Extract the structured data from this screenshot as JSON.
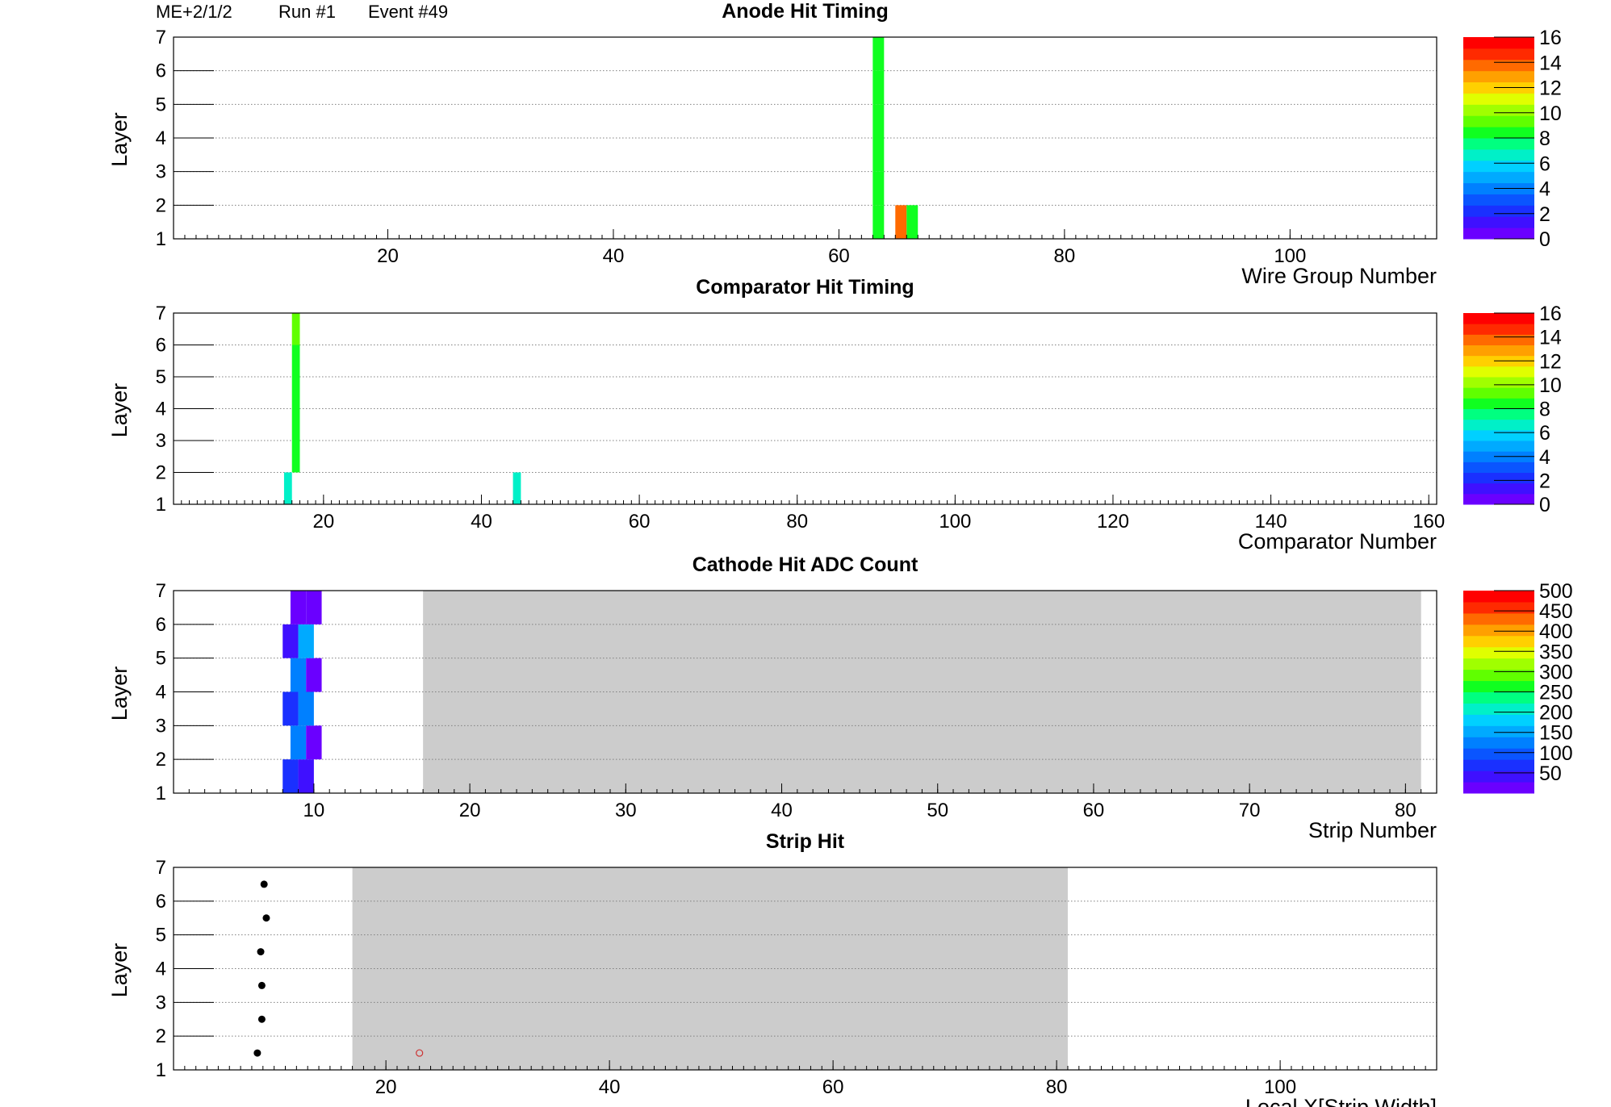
{
  "header": {
    "chamber": "ME+2/1/2",
    "run": "Run #1",
    "event": "Event #49"
  },
  "colors": {
    "palette": [
      "#6a00ff",
      "#3f10ff",
      "#1a30ff",
      "#0a55ff",
      "#0080ff",
      "#00aaff",
      "#00d0ff",
      "#00f0c8",
      "#00ff80",
      "#10ff20",
      "#60ff00",
      "#a0ff00",
      "#e0ff00",
      "#ffd000",
      "#ffa000",
      "#ff6a00",
      "#ff2a00",
      "#ff0000"
    ],
    "background_shade": "#cccccc",
    "strip_hit_point": "#000000",
    "strip_hit_marker": "#cc3333",
    "grid": "#808080"
  },
  "chart_data": [
    {
      "type": "heatmap",
      "title": "Anode Hit Timing",
      "xlabel": "Wire Group Number",
      "ylabel": "Layer",
      "xlim": [
        1,
        113
      ],
      "ylim": [
        1,
        7
      ],
      "x_ticks": [
        "20",
        "40",
        "60",
        "80",
        "100"
      ],
      "y_ticks": [
        "1",
        "2",
        "3",
        "4",
        "5",
        "6",
        "7"
      ],
      "grid": "horizontal dotted",
      "colorbar": {
        "range": [
          0,
          16
        ],
        "ticks": [
          "0",
          "2",
          "4",
          "6",
          "8",
          "10",
          "12",
          "14",
          "16"
        ]
      },
      "cells": [
        {
          "x": 63,
          "y": 1,
          "value": 8
        },
        {
          "x": 63,
          "y": 2,
          "value": 8
        },
        {
          "x": 63,
          "y": 3,
          "value": 8
        },
        {
          "x": 63,
          "y": 4,
          "value": 8
        },
        {
          "x": 63,
          "y": 5,
          "value": 8
        },
        {
          "x": 63,
          "y": 6,
          "value": 8
        },
        {
          "x": 65,
          "y": 1,
          "value": 14
        },
        {
          "x": 66,
          "y": 1,
          "value": 8
        }
      ]
    },
    {
      "type": "heatmap",
      "title": "Comparator Hit Timing",
      "xlabel": "Comparator Number",
      "ylabel": "Layer",
      "xlim": [
        1,
        161
      ],
      "ylim": [
        1,
        7
      ],
      "x_ticks": [
        "20",
        "40",
        "60",
        "80",
        "100",
        "120",
        "140",
        "160"
      ],
      "y_ticks": [
        "1",
        "2",
        "3",
        "4",
        "5",
        "6",
        "7"
      ],
      "grid": "horizontal dotted",
      "colorbar": {
        "range": [
          0,
          16
        ],
        "ticks": [
          "0",
          "2",
          "4",
          "6",
          "8",
          "10",
          "12",
          "14",
          "16"
        ]
      },
      "cells": [
        {
          "x": 15,
          "y": 1,
          "value": 7
        },
        {
          "x": 16,
          "y": 2,
          "value": 8
        },
        {
          "x": 16,
          "y": 3,
          "value": 8
        },
        {
          "x": 16,
          "y": 4,
          "value": 8
        },
        {
          "x": 16,
          "y": 5,
          "value": 8
        },
        {
          "x": 16,
          "y": 6,
          "value": 9
        },
        {
          "x": 44,
          "y": 1,
          "value": 7
        }
      ]
    },
    {
      "type": "heatmap",
      "title": "Cathode Hit ADC Count",
      "xlabel": "Strip Number",
      "ylabel": "Layer",
      "xlim": [
        1,
        82
      ],
      "ylim": [
        1,
        7
      ],
      "x_ticks": [
        "10",
        "20",
        "30",
        "40",
        "50",
        "60",
        "70",
        "80"
      ],
      "y_ticks": [
        "1",
        "2",
        "3",
        "4",
        "5",
        "6",
        "7"
      ],
      "grid": "horizontal dotted",
      "shaded_x_range": [
        17,
        81
      ],
      "colorbar": {
        "range": [
          0,
          500
        ],
        "ticks": [
          "50",
          "100",
          "150",
          "200",
          "250",
          "300",
          "350",
          "400",
          "450",
          "500"
        ]
      },
      "cells": [
        {
          "x": 8,
          "y": 1,
          "value": 80
        },
        {
          "x": 9,
          "y": 1,
          "value": 40
        },
        {
          "x": 8.5,
          "y": 2,
          "value": 120
        },
        {
          "x": 9.5,
          "y": 2,
          "value": 20
        },
        {
          "x": 8,
          "y": 3,
          "value": 80
        },
        {
          "x": 9,
          "y": 3,
          "value": 120
        },
        {
          "x": 8.5,
          "y": 4,
          "value": 120
        },
        {
          "x": 9.5,
          "y": 4,
          "value": 20
        },
        {
          "x": 8,
          "y": 5,
          "value": 40
        },
        {
          "x": 9,
          "y": 5,
          "value": 160
        },
        {
          "x": 8.5,
          "y": 6,
          "value": 20
        },
        {
          "x": 9.5,
          "y": 6,
          "value": 20
        }
      ]
    },
    {
      "type": "scatter",
      "title": "Strip Hit",
      "xlabel": "Local X[Strip Width]",
      "ylabel": "Layer",
      "xlim": [
        1,
        114
      ],
      "ylim": [
        1,
        7
      ],
      "x_ticks": [
        "20",
        "40",
        "60",
        "80",
        "100"
      ],
      "y_ticks": [
        "1",
        "2",
        "3",
        "4",
        "5",
        "6",
        "7"
      ],
      "grid": "horizontal dotted",
      "shaded_x_range": [
        17,
        81
      ],
      "series": [
        {
          "points": [
            [
              8.5,
              1.5
            ],
            [
              8.9,
              2.5
            ],
            [
              8.9,
              3.5
            ],
            [
              8.8,
              4.5
            ],
            [
              9.3,
              5.5
            ],
            [
              9.1,
              6.5
            ]
          ]
        },
        {
          "points": [
            [
              23,
              1.5
            ]
          ]
        }
      ]
    }
  ]
}
